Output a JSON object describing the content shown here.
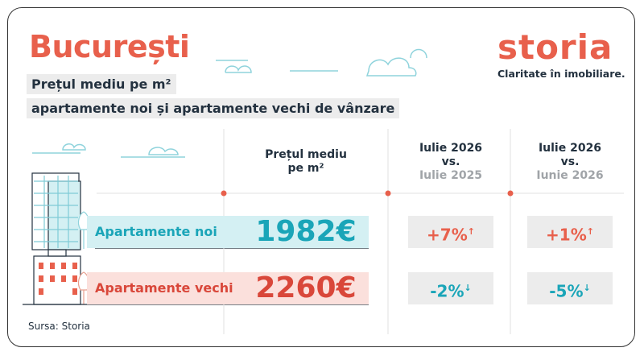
{
  "header": {
    "title": "București",
    "subtitle": [
      "Prețul mediu pe m²",
      "apartamente noi și apartamente vechi de vânzare"
    ]
  },
  "brand": {
    "name": "storia",
    "tagline": "Claritate în imobiliare."
  },
  "table": {
    "columns": [
      {
        "lines": [
          "Prețul mediu",
          "pe m²"
        ]
      },
      {
        "lines": [
          "Iulie 2026",
          "vs.",
          "Iulie 2025"
        ]
      },
      {
        "lines": [
          "Iulie 2026",
          "vs.",
          "Iunie 2026"
        ]
      }
    ],
    "rows": [
      {
        "label": "Apartamente noi",
        "cells": [
          "1982€",
          "+7%",
          "+1%"
        ]
      },
      {
        "label": "Apartamente vechi",
        "cells": [
          "2260€",
          "-2%",
          "-5%"
        ]
      }
    ]
  },
  "source": "Sursa: Storia"
}
